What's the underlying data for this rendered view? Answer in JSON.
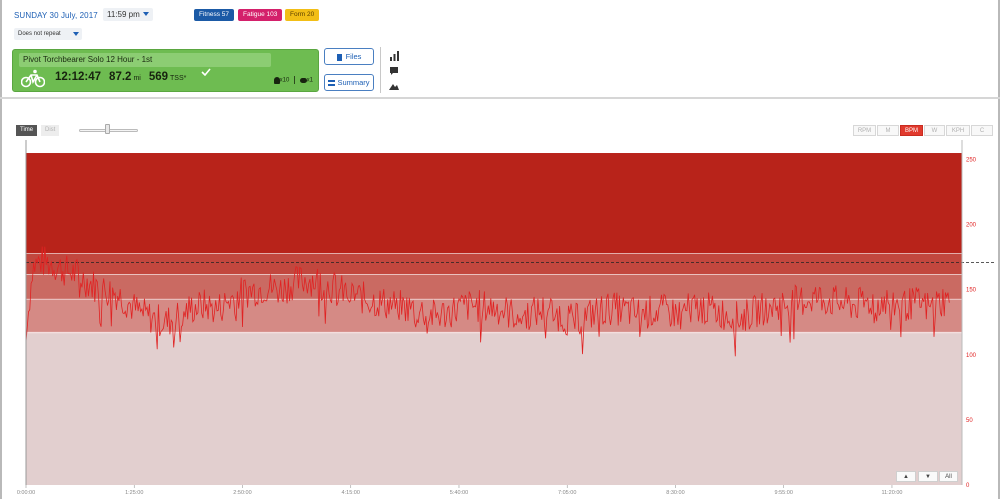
{
  "header": {
    "date": "SUNDAY 30 July, 2017",
    "time": "11:59 pm",
    "repeat": "Does not repeat",
    "fitness": "Fitness 57",
    "fatigue": "Fatigue 103",
    "form": "Form 20"
  },
  "workout": {
    "title": "Pivot Torchbearer Solo 12 Hour - 1st",
    "duration": "12:12:47",
    "distance": "87.2",
    "distance_unit": "mi",
    "tss": "569",
    "tss_unit": "TSS*",
    "likes": "x10",
    "comments": "x1",
    "activity_icon": "bike-icon"
  },
  "buttons": {
    "files": "Files",
    "summary": "Summary"
  },
  "toolbar": {
    "time": "Time",
    "dist": "Dist",
    "metrics": [
      "RPM",
      "M",
      "BPM",
      "W",
      "KPH",
      "C"
    ],
    "active_metric": "BPM"
  },
  "zoom": {
    "up": "▲",
    "down": "▼",
    "all": "All"
  },
  "colors": {
    "fitness": "#1b5aa6",
    "fatigue": "#d4206b",
    "form": "#f2be16",
    "card": "#6ebc51",
    "hr": "#e02222",
    "zone_top": "#b8231a"
  },
  "chart_data": {
    "type": "line",
    "metric": "BPM",
    "x_ticks": [
      "0:00:00",
      "1:25:00",
      "2:50:00",
      "4:15:00",
      "5:40:00",
      "7:05:00",
      "8:30:00",
      "9:55:00",
      "11:20:00"
    ],
    "x_range_seconds": [
      0,
      44100
    ],
    "y_ticks": [
      0,
      50,
      100,
      150,
      200,
      250
    ],
    "ylim": [
      0,
      265
    ],
    "threshold_dashed": 171,
    "zones": [
      {
        "from": 0,
        "to": 117,
        "color": "#e2cfcf"
      },
      {
        "from": 117,
        "to": 143,
        "color": "#d58a85"
      },
      {
        "from": 143,
        "to": 162,
        "color": "#ca6a62"
      },
      {
        "from": 162,
        "to": 178,
        "color": "#c2473e"
      },
      {
        "from": 178,
        "to": 255,
        "color": "#b8231a"
      }
    ],
    "series": [
      {
        "values": [
          [
            0,
            110
          ],
          [
            300,
            168
          ],
          [
            700,
            172
          ],
          [
            1200,
            170
          ],
          [
            1800,
            165
          ],
          [
            2400,
            162
          ],
          [
            3000,
            155
          ],
          [
            3600,
            150
          ],
          [
            4200,
            148
          ],
          [
            4800,
            140
          ],
          [
            5400,
            132
          ],
          [
            6000,
            128
          ],
          [
            6600,
            125
          ],
          [
            7200,
            130
          ],
          [
            7800,
            136
          ],
          [
            8400,
            138
          ],
          [
            9000,
            135
          ],
          [
            9600,
            142
          ],
          [
            10200,
            148
          ],
          [
            10800,
            150
          ],
          [
            11400,
            152
          ],
          [
            12000,
            150
          ],
          [
            12600,
            155
          ],
          [
            13200,
            158
          ],
          [
            13800,
            157
          ],
          [
            14400,
            152
          ],
          [
            15000,
            148
          ],
          [
            15600,
            145
          ],
          [
            16200,
            142
          ],
          [
            16800,
            140
          ],
          [
            17400,
            138
          ],
          [
            18000,
            136
          ],
          [
            18600,
            134
          ],
          [
            19200,
            130
          ],
          [
            19800,
            132
          ],
          [
            20400,
            136
          ],
          [
            21000,
            138
          ],
          [
            21600,
            137
          ],
          [
            22200,
            136
          ],
          [
            22800,
            132
          ],
          [
            23400,
            130
          ],
          [
            24000,
            133
          ],
          [
            24600,
            135
          ],
          [
            25200,
            130
          ],
          [
            25800,
            126
          ],
          [
            26400,
            130
          ],
          [
            27000,
            134
          ],
          [
            27600,
            136
          ],
          [
            28200,
            134
          ],
          [
            28800,
            132
          ],
          [
            29400,
            133
          ],
          [
            30000,
            134
          ],
          [
            30600,
            132
          ],
          [
            31200,
            135
          ],
          [
            31800,
            137
          ],
          [
            32400,
            134
          ],
          [
            33000,
            131
          ],
          [
            33600,
            128
          ],
          [
            34200,
            132
          ],
          [
            34800,
            136
          ],
          [
            35400,
            138
          ],
          [
            36000,
            140
          ],
          [
            36600,
            142
          ],
          [
            37200,
            144
          ],
          [
            37800,
            142
          ],
          [
            38400,
            140
          ],
          [
            39000,
            138
          ],
          [
            39600,
            140
          ],
          [
            40200,
            142
          ],
          [
            40800,
            140
          ],
          [
            41400,
            138
          ],
          [
            42000,
            140
          ],
          [
            42600,
            136
          ],
          [
            43200,
            142
          ],
          [
            43500,
            140
          ]
        ]
      }
    ]
  }
}
